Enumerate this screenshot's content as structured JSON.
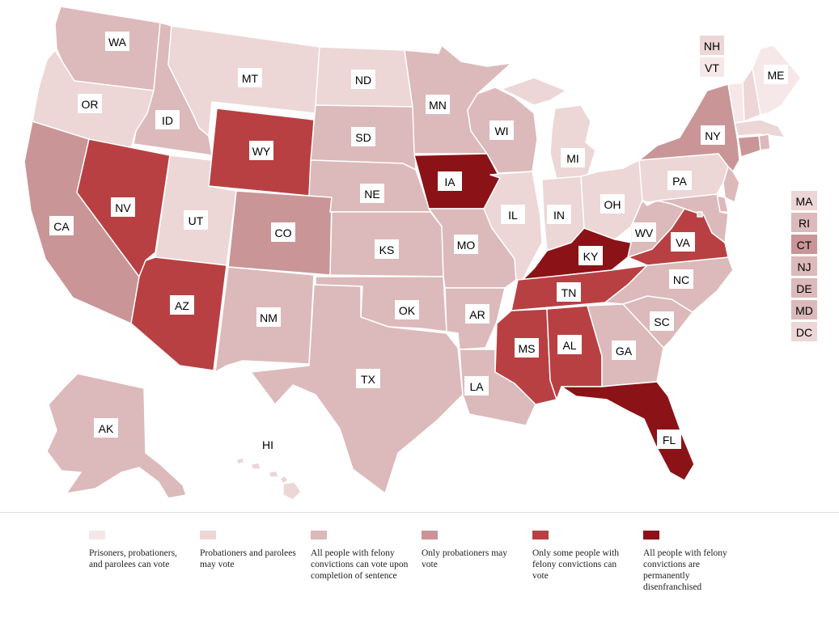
{
  "categories": [
    {
      "key": "c1",
      "color": "#f6e8e8",
      "label": "Prisoners, probationers, and parolees can vote"
    },
    {
      "key": "c2",
      "color": "#ecd6d6",
      "label": "Probationers and parolees may vote"
    },
    {
      "key": "c3",
      "color": "#dcb9ba",
      "label": "All people with felony convictions can vote upon completion of sentence"
    },
    {
      "key": "c4",
      "color": "#c99597",
      "label": "Only probationers may vote"
    },
    {
      "key": "c5",
      "color": "#b84042",
      "label": "Only some people with felony convictions can vote"
    },
    {
      "key": "c6",
      "color": "#8b1217",
      "label": "All people with felony convictions are permanently disenfranchised"
    }
  ],
  "states": {
    "WA": "c3",
    "OR": "c2",
    "CA": "c4",
    "ID": "c3",
    "NV": "c5",
    "UT": "c2",
    "AZ": "c5",
    "MT": "c2",
    "WY": "c5",
    "CO": "c4",
    "NM": "c3",
    "ND": "c2",
    "SD": "c3",
    "NE": "c3",
    "KS": "c3",
    "OK": "c3",
    "TX": "c3",
    "MN": "c3",
    "IA": "c6",
    "MO": "c3",
    "AR": "c3",
    "LA": "c3",
    "WI": "c3",
    "IL": "c2",
    "MI": "c2",
    "IN": "c2",
    "OH": "c2",
    "KY": "c6",
    "TN": "c5",
    "MS": "c5",
    "AL": "c5",
    "GA": "c3",
    "FL": "c6",
    "SC": "c3",
    "NC": "c3",
    "VA": "c5",
    "WV": "c3",
    "PA": "c2",
    "NY": "c4",
    "ME": "c1",
    "VT": "c1",
    "NH": "c2",
    "MA": "c2",
    "RI": "c3",
    "CT": "c4",
    "NJ": "c3",
    "DE": "c3",
    "MD": "c3",
    "DC": "c2",
    "AK": "c3",
    "HI": "c2"
  },
  "side_labels": [
    "MA",
    "RI",
    "CT",
    "NJ",
    "DE",
    "MD",
    "DC"
  ],
  "ne_labels": [
    "NH",
    "VT"
  ],
  "state_labels": [
    "WA",
    "OR",
    "ID",
    "MT",
    "ND",
    "MN",
    "WI",
    "MI",
    "NY",
    "ME",
    "CA",
    "NV",
    "UT",
    "WY",
    "SD",
    "NE",
    "IA",
    "IL",
    "IN",
    "OH",
    "PA",
    "CO",
    "KS",
    "MO",
    "KY",
    "WV",
    "VA",
    "AZ",
    "NM",
    "OK",
    "AR",
    "TN",
    "NC",
    "SC",
    "GA",
    "AL",
    "MS",
    "TX",
    "LA",
    "FL",
    "AK",
    "HI"
  ]
}
